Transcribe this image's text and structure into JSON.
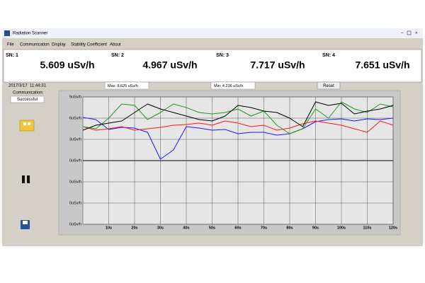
{
  "window": {
    "title": "Radiation Scanner",
    "menu": [
      "File",
      "Communication",
      "Display",
      "Stability Coefficient",
      "About"
    ]
  },
  "readouts": [
    {
      "label": "SN: 1",
      "value": "5.609 uSv/h",
      "color": "#1a1aff"
    },
    {
      "label": "SN: 2",
      "value": "4.967 uSv/h",
      "color": "#ff1a1a"
    },
    {
      "label": "SN: 3",
      "value": "7.717 uSv/h",
      "color": "#1f9a1f"
    },
    {
      "label": "SN: 4",
      "value": "7.651 uSv/h",
      "color": "#000000"
    }
  ],
  "status": {
    "date": "2017/3/17",
    "time": "11:44:31",
    "max": "Max: 8.625 uSv/h",
    "min": "Min: 4.236 uSv/h",
    "reset": "Reset",
    "communication_label": "Communication:",
    "communication_status": "Successful"
  },
  "chart_data": {
    "type": "line",
    "x": [
      0,
      5,
      10,
      15,
      20,
      25,
      30,
      35,
      40,
      45,
      50,
      55,
      60,
      65,
      70,
      75,
      80,
      85,
      90,
      95,
      100,
      105,
      110,
      115,
      120
    ],
    "xlim": [
      0,
      120
    ],
    "xticks": [
      {
        "value": 10,
        "label": "10s"
      },
      {
        "value": 20,
        "label": "20s"
      },
      {
        "value": 30,
        "label": "30s"
      },
      {
        "value": 40,
        "label": "40s"
      },
      {
        "value": 50,
        "label": "50s"
      },
      {
        "value": 60,
        "label": "60s"
      },
      {
        "value": 70,
        "label": "70s"
      },
      {
        "value": 80,
        "label": "80s"
      },
      {
        "value": 90,
        "label": "90s"
      },
      {
        "value": 100,
        "label": "100s"
      },
      {
        "value": 110,
        "label": "110s"
      },
      {
        "value": 120,
        "label": "120s"
      }
    ],
    "ylim": [
      -9,
      9
    ],
    "yticks": [
      {
        "value": 9,
        "label": "9uSv/h"
      },
      {
        "value": 6,
        "label": "6uSv/h"
      },
      {
        "value": 3,
        "label": "3uSv/h"
      },
      {
        "value": 0,
        "label": "0uSv/h"
      },
      {
        "value": -3,
        "label": "0uSv/h"
      },
      {
        "value": -6,
        "label": "0uSv/h"
      },
      {
        "value": -9,
        "label": "0uSv/h"
      }
    ],
    "grid": true,
    "series": [
      {
        "color": "#1a1aff",
        "values": [
          6.1,
          5.8,
          4.4,
          4.7,
          4.6,
          4.0,
          0.2,
          1.5,
          4.8,
          4.6,
          4.3,
          4.4,
          3.8,
          4.0,
          4.0,
          3.6,
          3.8,
          4.5,
          5.5,
          5.8,
          5.9,
          5.6,
          5.9,
          5.8,
          6.0
        ]
      },
      {
        "color": "#ff1a1a",
        "values": [
          4.8,
          4.3,
          4.5,
          4.8,
          4.3,
          4.5,
          4.7,
          5.0,
          5.1,
          5.3,
          5.0,
          5.6,
          5.3,
          4.8,
          5.0,
          4.3,
          4.6,
          5.2,
          5.6,
          5.3,
          5.0,
          4.5,
          4.0,
          5.6,
          5.0
        ]
      },
      {
        "color": "#1f9a1f",
        "values": [
          4.8,
          4.5,
          6.0,
          8.0,
          7.8,
          5.8,
          6.8,
          8.0,
          7.5,
          6.8,
          6.6,
          6.8,
          7.3,
          6.3,
          7.0,
          5.0,
          3.8,
          4.5,
          7.3,
          6.0,
          8.3,
          7.3,
          6.8,
          8.0,
          7.6
        ]
      },
      {
        "color": "#000000",
        "values": [
          4.3,
          5.0,
          5.3,
          5.6,
          6.8,
          8.0,
          7.3,
          6.8,
          6.3,
          5.8,
          5.6,
          6.3,
          7.8,
          7.5,
          7.0,
          6.8,
          6.0,
          4.8,
          8.3,
          7.8,
          8.1,
          6.6,
          7.0,
          7.3,
          7.8
        ]
      }
    ]
  }
}
